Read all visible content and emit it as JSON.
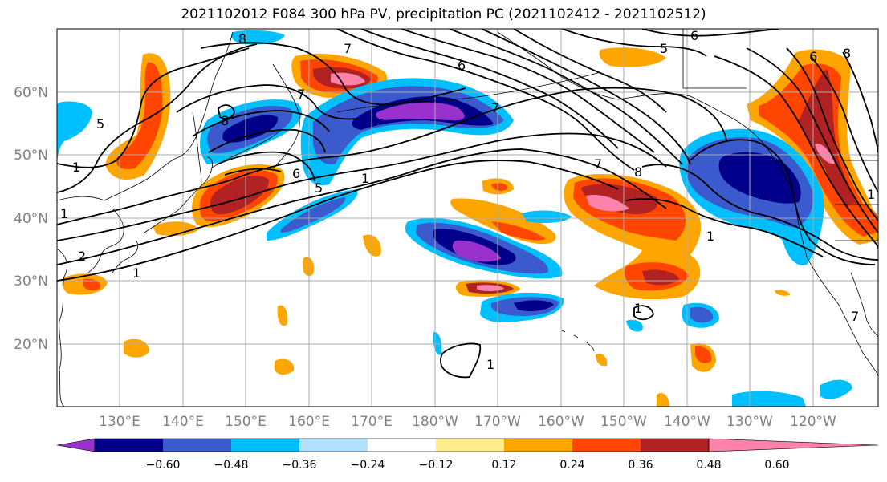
{
  "title": "2021102012 F084 300 hPa PV, precipitation PC (2021102412 - 2021102512)",
  "map": {
    "lat_labels": [
      "60°N",
      "50°N",
      "40°N",
      "30°N",
      "20°N"
    ],
    "lon_labels": [
      "130°E",
      "140°E",
      "150°E",
      "160°E",
      "170°E",
      "180°W",
      "170°W",
      "160°W",
      "150°W",
      "140°W",
      "130°W",
      "120°W"
    ],
    "contour_labels": [
      "8",
      "7",
      "6",
      "5",
      "1",
      "8",
      "7",
      "6",
      "5",
      "8",
      "7",
      "1",
      "6",
      "7",
      "1",
      "1",
      "8",
      "6",
      "5",
      "1",
      "2",
      "1",
      "7",
      "1",
      "1"
    ]
  },
  "colorbar": {
    "colors": [
      "#9932CC",
      "#00008B",
      "#3A5ACD",
      "#00BFFF",
      "#B0E2FF",
      "#FFFFFF",
      "#FFEC8B",
      "#FFA500",
      "#FF4500",
      "#B22222",
      "#FF82AB"
    ],
    "ticks": [
      "−0.60",
      "−0.48",
      "−0.36",
      "−0.24",
      "−0.12",
      "0.12",
      "0.24",
      "0.36",
      "0.48",
      "0.60"
    ]
  }
}
